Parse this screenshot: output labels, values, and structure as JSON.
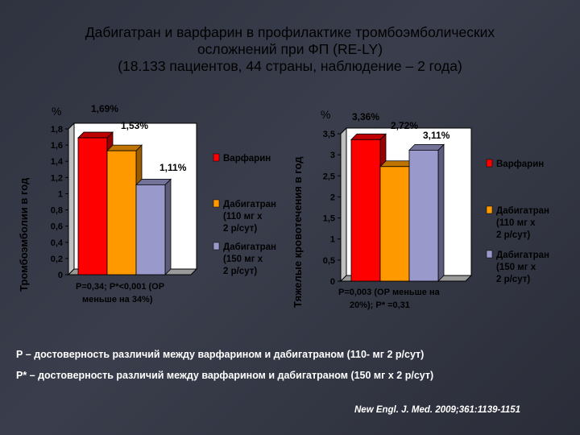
{
  "title": {
    "line1": "Дабигатран и варфарин в профилактике тромбоэмболических",
    "line2": "осложнений при ФП (RE-LY)",
    "line3": "(18.133 пациентов, 44 страны, наблюдение – 2 года)"
  },
  "chart_data": [
    {
      "type": "bar",
      "ylabel": "Тромбоэмболии в год",
      "unit": "%",
      "categories": [
        "Варфарин",
        "Дабигатран (110 мг х 2 р/сут)",
        "Дабигатран (150 мг х 2 р/сут)"
      ],
      "values": [
        1.69,
        1.53,
        1.11
      ],
      "value_labels": [
        "1,69%",
        "1,53%",
        "1,11%"
      ],
      "ylim": [
        0,
        1.8
      ],
      "yticks": [
        0,
        0.2,
        0.4,
        0.6,
        0.8,
        1,
        1.2,
        1.4,
        1.6,
        1.8
      ],
      "ytick_labels": [
        "0",
        "0,2",
        "0,4",
        "0,6",
        "0,8",
        "1",
        "1,2",
        "1,4",
        "1,6",
        "1,8"
      ],
      "colors": [
        "#ff0000",
        "#ff9900",
        "#9999cc"
      ],
      "legend": [
        {
          "label": "Варфарин",
          "color": "#ff0000"
        },
        {
          "label": "Дабигатран (110 мг х 2 р/сут)",
          "color": "#ff9900"
        },
        {
          "label": "Дабигатран (150 мг х 2 р/сут)",
          "color": "#9999cc"
        }
      ],
      "annotation_line1": "Р=0,34; Р*<0,001 (ОР",
      "annotation_line2": "меньше на 34%)"
    },
    {
      "type": "bar",
      "ylabel": "Тяжелые кровотечения в год",
      "unit": "%",
      "categories": [
        "Варфарин",
        "Дабигатран (110 мг х 2 р/сут)",
        "Дабигатран (150 мг х 2 р/сут)"
      ],
      "values": [
        3.36,
        2.72,
        3.11
      ],
      "value_labels": [
        "3,36%",
        "2,72%",
        "3,11%"
      ],
      "ylim": [
        0,
        3.5
      ],
      "yticks": [
        0,
        0.5,
        1,
        1.5,
        2,
        2.5,
        3,
        3.5
      ],
      "ytick_labels": [
        "0",
        "0,5",
        "1",
        "1,5",
        "2",
        "2,5",
        "3",
        "3,5"
      ],
      "colors": [
        "#ff0000",
        "#ff9900",
        "#9999cc"
      ],
      "legend": [
        {
          "label": "Варфарин",
          "color": "#ff0000"
        },
        {
          "label": "Дабигатран (110 мг х 2 р/сут)",
          "color": "#ff9900"
        },
        {
          "label": "Дабигатран (150 мг х 2 р/сут)",
          "color": "#9999cc"
        }
      ],
      "annotation_line1": "Р=0,003 (ОР меньше на",
      "annotation_line2": "20%);   Р* =0,31"
    }
  ],
  "notes": {
    "p": "Р – достоверность различий между варфарином и дабигатраном (110- мг 2 р/сут)",
    "p_star": "Р* – достоверность различий между варфарином и дабигатраном (150 мг х 2 р/сут)",
    "citation": "New Engl. J. Med. 2009;361:1139-1151"
  }
}
